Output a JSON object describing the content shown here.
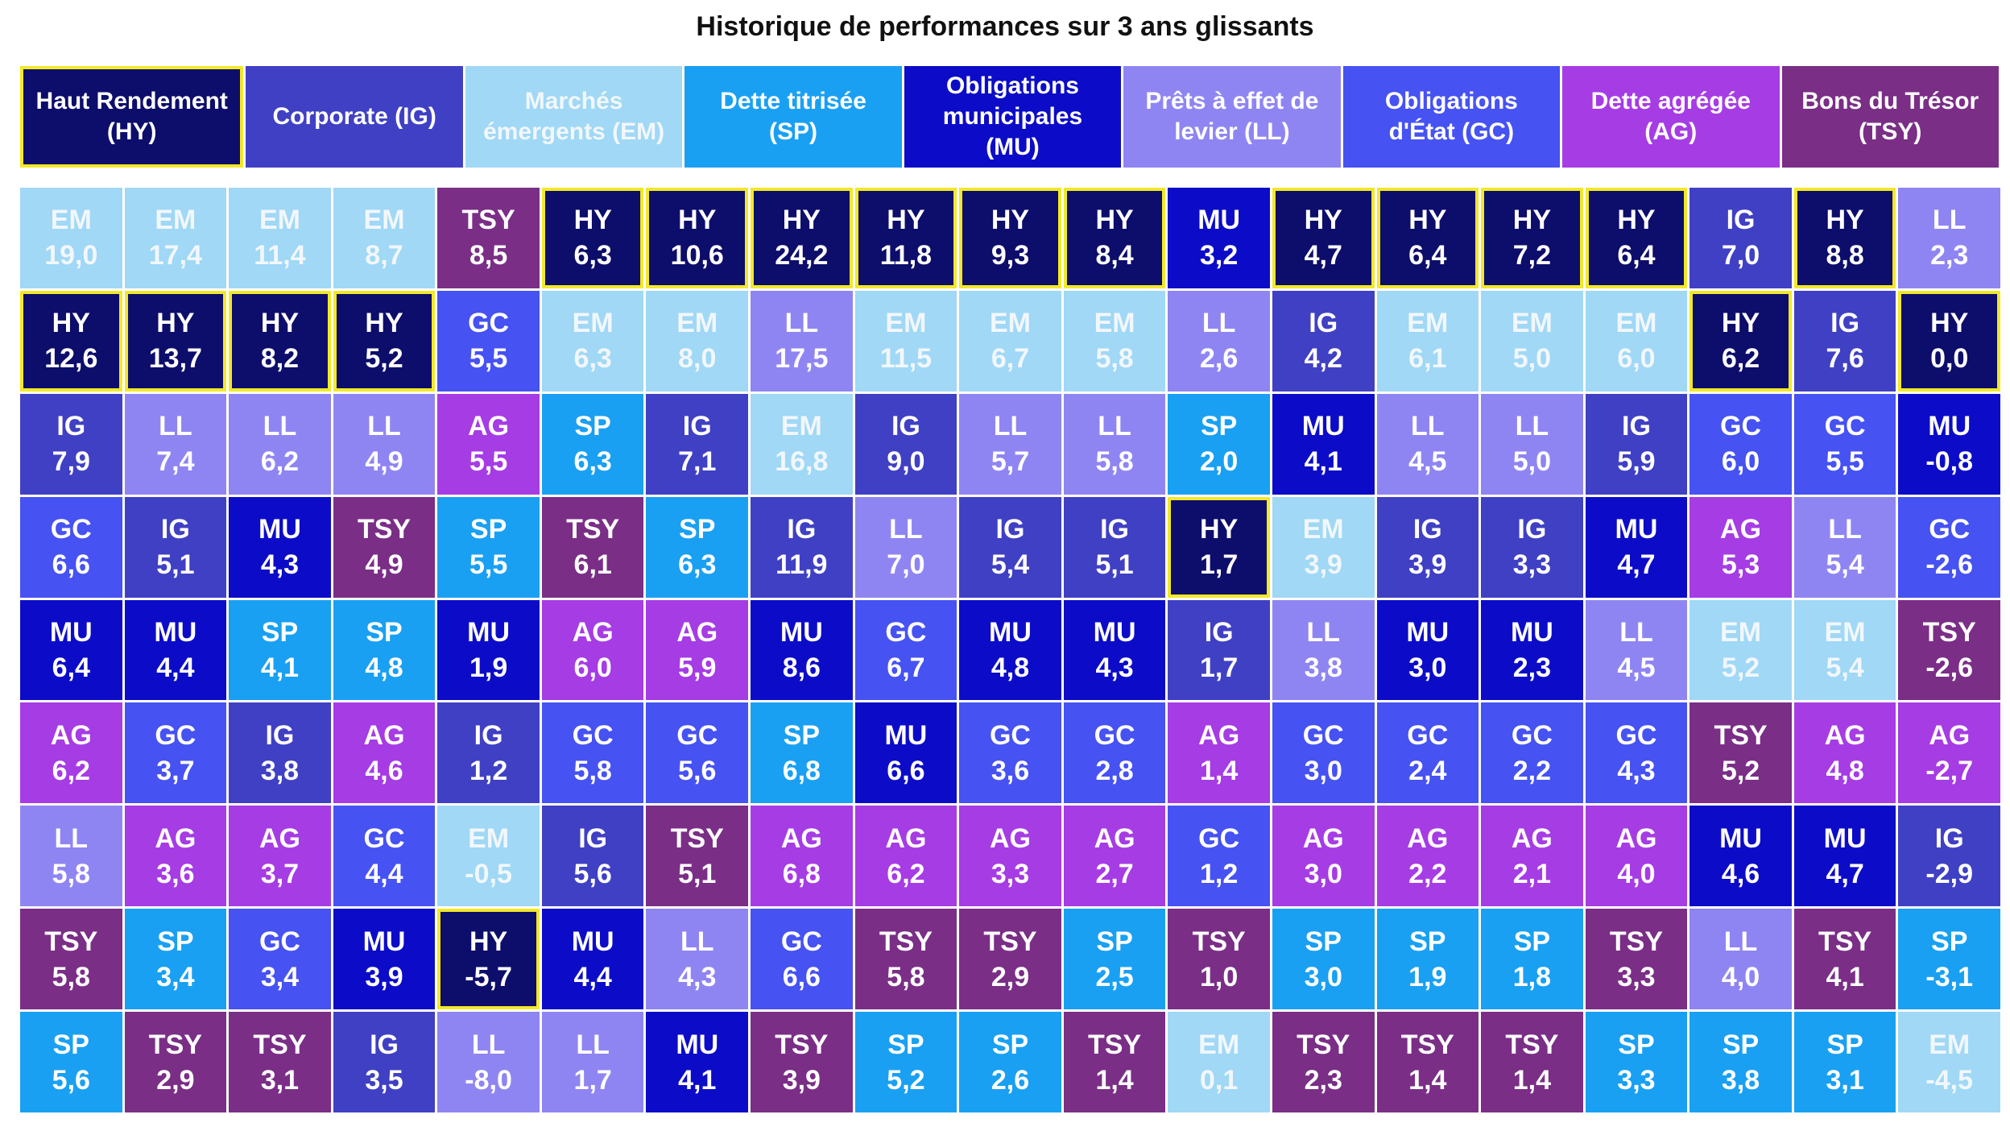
{
  "title": "Historique de performances sur 3 ans glissants",
  "colors": {
    "HY": "#0d0d6b",
    "IG": "#4040c4",
    "EM": "#a0d8f6",
    "SP": "#1aa0f2",
    "MU": "#0c0cc8",
    "LL": "#8f85f2",
    "GC": "#4652f2",
    "AG": "#a63ce4",
    "TSY": "#7a2e86",
    "highlight": "#f2e82a"
  },
  "text_colors": {
    "HY": "#ffffff",
    "IG": "#ffffff",
    "EM": "#f2f7fc",
    "SP": "#ffffff",
    "MU": "#ffffff",
    "LL": "#ffffff",
    "GC": "#ffffff",
    "AG": "#ffffff",
    "TSY": "#ffffff"
  },
  "legend": [
    {
      "code": "HY",
      "line1": "Haut Rendement",
      "line2": "(HY)"
    },
    {
      "code": "IG",
      "line1": "Corporate (IG)",
      "line2": ""
    },
    {
      "code": "EM",
      "line1": "Marchés",
      "line2": "émergents (EM)"
    },
    {
      "code": "SP",
      "line1": "Dette titrisée",
      "line2": "(SP)"
    },
    {
      "code": "MU",
      "line1": "Obligations",
      "line2": "municipales",
      "line3": "(MU)"
    },
    {
      "code": "LL",
      "line1": "Prêts à effet de",
      "line2": "levier (LL)"
    },
    {
      "code": "GC",
      "line1": "Obligations",
      "line2": "d'État (GC)"
    },
    {
      "code": "AG",
      "line1": "Dette agrégée",
      "line2": "(AG)"
    },
    {
      "code": "TSY",
      "line1": "Bons du Trésor",
      "line2": "(TSY)"
    }
  ],
  "chart_data": {
    "type": "table",
    "title": "Historique de performances sur 3 ans glissants",
    "highlight_code": "HY",
    "columns": [
      [
        [
          "EM",
          "19,0"
        ],
        [
          "HY",
          "12,6"
        ],
        [
          "IG",
          "7,9"
        ],
        [
          "GC",
          "6,6"
        ],
        [
          "MU",
          "6,4"
        ],
        [
          "AG",
          "6,2"
        ],
        [
          "LL",
          "5,8"
        ],
        [
          "TSY",
          "5,8"
        ],
        [
          "SP",
          "5,6"
        ]
      ],
      [
        [
          "EM",
          "17,4"
        ],
        [
          "HY",
          "13,7"
        ],
        [
          "LL",
          "7,4"
        ],
        [
          "IG",
          "5,1"
        ],
        [
          "MU",
          "4,4"
        ],
        [
          "GC",
          "3,7"
        ],
        [
          "AG",
          "3,6"
        ],
        [
          "SP",
          "3,4"
        ],
        [
          "TSY",
          "2,9"
        ]
      ],
      [
        [
          "EM",
          "11,4"
        ],
        [
          "HY",
          "8,2"
        ],
        [
          "LL",
          "6,2"
        ],
        [
          "MU",
          "4,3"
        ],
        [
          "SP",
          "4,1"
        ],
        [
          "IG",
          "3,8"
        ],
        [
          "AG",
          "3,7"
        ],
        [
          "GC",
          "3,4"
        ],
        [
          "TSY",
          "3,1"
        ]
      ],
      [
        [
          "EM",
          "8,7"
        ],
        [
          "HY",
          "5,2"
        ],
        [
          "LL",
          "4,9"
        ],
        [
          "TSY",
          "4,9"
        ],
        [
          "SP",
          "4,8"
        ],
        [
          "AG",
          "4,6"
        ],
        [
          "GC",
          "4,4"
        ],
        [
          "MU",
          "3,9"
        ],
        [
          "IG",
          "3,5"
        ]
      ],
      [
        [
          "TSY",
          "8,5"
        ],
        [
          "GC",
          "5,5"
        ],
        [
          "AG",
          "5,5"
        ],
        [
          "SP",
          "5,5"
        ],
        [
          "MU",
          "1,9"
        ],
        [
          "IG",
          "1,2"
        ],
        [
          "EM",
          "-0,5"
        ],
        [
          "HY",
          "-5,7"
        ],
        [
          "LL",
          "-8,0"
        ]
      ],
      [
        [
          "HY",
          "6,3"
        ],
        [
          "EM",
          "6,3"
        ],
        [
          "SP",
          "6,3"
        ],
        [
          "TSY",
          "6,1"
        ],
        [
          "AG",
          "6,0"
        ],
        [
          "GC",
          "5,8"
        ],
        [
          "IG",
          "5,6"
        ],
        [
          "MU",
          "4,4"
        ],
        [
          "LL",
          "1,7"
        ]
      ],
      [
        [
          "HY",
          "10,6"
        ],
        [
          "EM",
          "8,0"
        ],
        [
          "IG",
          "7,1"
        ],
        [
          "SP",
          "6,3"
        ],
        [
          "AG",
          "5,9"
        ],
        [
          "GC",
          "5,6"
        ],
        [
          "TSY",
          "5,1"
        ],
        [
          "LL",
          "4,3"
        ],
        [
          "MU",
          "4,1"
        ]
      ],
      [
        [
          "HY",
          "24,2"
        ],
        [
          "LL",
          "17,5"
        ],
        [
          "EM",
          "16,8"
        ],
        [
          "IG",
          "11,9"
        ],
        [
          "MU",
          "8,6"
        ],
        [
          "SP",
          "6,8"
        ],
        [
          "AG",
          "6,8"
        ],
        [
          "GC",
          "6,6"
        ],
        [
          "TSY",
          "3,9"
        ]
      ],
      [
        [
          "HY",
          "11,8"
        ],
        [
          "EM",
          "11,5"
        ],
        [
          "IG",
          "9,0"
        ],
        [
          "LL",
          "7,0"
        ],
        [
          "GC",
          "6,7"
        ],
        [
          "MU",
          "6,6"
        ],
        [
          "AG",
          "6,2"
        ],
        [
          "TSY",
          "5,8"
        ],
        [
          "SP",
          "5,2"
        ]
      ],
      [
        [
          "HY",
          "9,3"
        ],
        [
          "EM",
          "6,7"
        ],
        [
          "LL",
          "5,7"
        ],
        [
          "IG",
          "5,4"
        ],
        [
          "MU",
          "4,8"
        ],
        [
          "GC",
          "3,6"
        ],
        [
          "AG",
          "3,3"
        ],
        [
          "TSY",
          "2,9"
        ],
        [
          "SP",
          "2,6"
        ]
      ],
      [
        [
          "HY",
          "8,4"
        ],
        [
          "EM",
          "5,8"
        ],
        [
          "LL",
          "5,8"
        ],
        [
          "IG",
          "5,1"
        ],
        [
          "MU",
          "4,3"
        ],
        [
          "GC",
          "2,8"
        ],
        [
          "AG",
          "2,7"
        ],
        [
          "SP",
          "2,5"
        ],
        [
          "TSY",
          "1,4"
        ]
      ],
      [
        [
          "MU",
          "3,2"
        ],
        [
          "LL",
          "2,6"
        ],
        [
          "SP",
          "2,0"
        ],
        [
          "HY",
          "1,7"
        ],
        [
          "IG",
          "1,7"
        ],
        [
          "AG",
          "1,4"
        ],
        [
          "GC",
          "1,2"
        ],
        [
          "TSY",
          "1,0"
        ],
        [
          "EM",
          "0,1"
        ]
      ],
      [
        [
          "HY",
          "4,7"
        ],
        [
          "IG",
          "4,2"
        ],
        [
          "MU",
          "4,1"
        ],
        [
          "EM",
          "3,9"
        ],
        [
          "LL",
          "3,8"
        ],
        [
          "GC",
          "3,0"
        ],
        [
          "AG",
          "3,0"
        ],
        [
          "SP",
          "3,0"
        ],
        [
          "TSY",
          "2,3"
        ]
      ],
      [
        [
          "HY",
          "6,4"
        ],
        [
          "EM",
          "6,1"
        ],
        [
          "LL",
          "4,5"
        ],
        [
          "IG",
          "3,9"
        ],
        [
          "MU",
          "3,0"
        ],
        [
          "GC",
          "2,4"
        ],
        [
          "AG",
          "2,2"
        ],
        [
          "SP",
          "1,9"
        ],
        [
          "TSY",
          "1,4"
        ]
      ],
      [
        [
          "HY",
          "7,2"
        ],
        [
          "EM",
          "5,0"
        ],
        [
          "LL",
          "5,0"
        ],
        [
          "IG",
          "3,3"
        ],
        [
          "MU",
          "2,3"
        ],
        [
          "GC",
          "2,2"
        ],
        [
          "AG",
          "2,1"
        ],
        [
          "SP",
          "1,8"
        ],
        [
          "TSY",
          "1,4"
        ]
      ],
      [
        [
          "HY",
          "6,4"
        ],
        [
          "EM",
          "6,0"
        ],
        [
          "IG",
          "5,9"
        ],
        [
          "MU",
          "4,7"
        ],
        [
          "LL",
          "4,5"
        ],
        [
          "GC",
          "4,3"
        ],
        [
          "AG",
          "4,0"
        ],
        [
          "TSY",
          "3,3"
        ],
        [
          "SP",
          "3,3"
        ]
      ],
      [
        [
          "IG",
          "7,0"
        ],
        [
          "HY",
          "6,2"
        ],
        [
          "GC",
          "6,0"
        ],
        [
          "AG",
          "5,3"
        ],
        [
          "EM",
          "5,2"
        ],
        [
          "TSY",
          "5,2"
        ],
        [
          "MU",
          "4,6"
        ],
        [
          "LL",
          "4,0"
        ],
        [
          "SP",
          "3,8"
        ]
      ],
      [
        [
          "HY",
          "8,8"
        ],
        [
          "IG",
          "7,6"
        ],
        [
          "GC",
          "5,5"
        ],
        [
          "LL",
          "5,4"
        ],
        [
          "EM",
          "5,4"
        ],
        [
          "AG",
          "4,8"
        ],
        [
          "MU",
          "4,7"
        ],
        [
          "TSY",
          "4,1"
        ],
        [
          "SP",
          "3,1"
        ]
      ],
      [
        [
          "LL",
          "2,3"
        ],
        [
          "HY",
          "0,0"
        ],
        [
          "MU",
          "-0,8"
        ],
        [
          "GC",
          "-2,6"
        ],
        [
          "TSY",
          "-2,6"
        ],
        [
          "AG",
          "-2,7"
        ],
        [
          "IG",
          "-2,9"
        ],
        [
          "SP",
          "-3,1"
        ],
        [
          "EM",
          "-4,5"
        ]
      ]
    ]
  }
}
